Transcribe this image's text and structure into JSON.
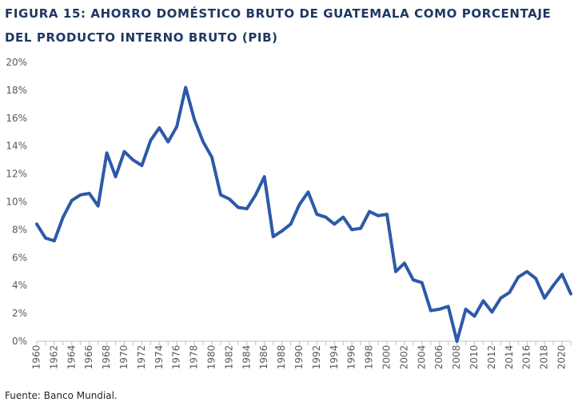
{
  "chart_data": {
    "type": "line",
    "title_line1": "FIGURA 15: AHORRO DOMÉSTICO BRUTO DE GUATEMALA COMO PORCENTAJE",
    "title_line2": "DEL PRODUCTO INTERNO BRUTO (PIB)",
    "source": "Fuente: Banco Mundial.",
    "x": [
      1960,
      1961,
      1962,
      1963,
      1964,
      1965,
      1966,
      1967,
      1968,
      1969,
      1970,
      1971,
      1972,
      1973,
      1974,
      1975,
      1976,
      1977,
      1978,
      1979,
      1980,
      1981,
      1982,
      1983,
      1984,
      1985,
      1986,
      1987,
      1988,
      1989,
      1990,
      1991,
      1992,
      1993,
      1994,
      1995,
      1996,
      1997,
      1998,
      1999,
      2000,
      2001,
      2002,
      2003,
      2004,
      2005,
      2006,
      2007,
      2008,
      2009,
      2010,
      2011,
      2012,
      2013,
      2014,
      2015,
      2016,
      2017,
      2018,
      2019,
      2020,
      2021
    ],
    "xticks": [
      "1960",
      "1962",
      "1964",
      "1966",
      "1968",
      "1970",
      "1972",
      "1974",
      "1976",
      "1978",
      "1980",
      "1982",
      "1984",
      "1986",
      "1988",
      "1990",
      "1992",
      "1994",
      "1996",
      "1998",
      "2000",
      "2002",
      "2004",
      "2006",
      "2008",
      "2010",
      "2012",
      "2014",
      "2016",
      "2018",
      "2020"
    ],
    "yticks": [
      "0%",
      "2%",
      "4%",
      "6%",
      "8%",
      "10%",
      "12%",
      "14%",
      "16%",
      "18%",
      "20%"
    ],
    "ylim": [
      0,
      20
    ],
    "series": [
      {
        "color": "#2e59a8",
        "values": [
          8.4,
          7.4,
          7.2,
          8.9,
          10.1,
          10.5,
          10.6,
          9.7,
          13.5,
          11.8,
          13.6,
          13.0,
          12.6,
          14.4,
          15.3,
          14.3,
          15.4,
          18.2,
          15.9,
          14.3,
          13.2,
          10.5,
          10.2,
          9.6,
          9.5,
          10.5,
          11.8,
          7.5,
          7.9,
          8.4,
          9.8,
          10.7,
          9.1,
          8.9,
          8.4,
          8.9,
          8.0,
          8.1,
          9.3,
          9.0,
          9.1,
          5.0,
          5.6,
          4.4,
          4.2,
          2.2,
          2.3,
          2.5,
          0.0,
          2.3,
          1.8,
          2.9,
          2.1,
          3.1,
          3.5,
          4.6,
          5.0,
          4.5,
          3.1,
          4.0,
          4.8,
          3.4
        ]
      }
    ],
    "grid": false
  }
}
